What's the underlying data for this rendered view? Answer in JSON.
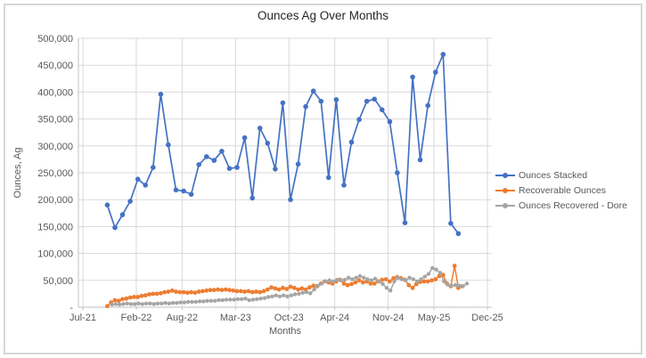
{
  "chart_data": {
    "type": "line",
    "title": "Ounces Ag Over Months",
    "xlabel": "Months",
    "ylabel": "Ounces, Ag",
    "ylim": [
      0,
      500000
    ],
    "ytick_step": 50000,
    "ytick_labels": [
      "-",
      "50,000",
      "100,000",
      "150,000",
      "200,000",
      "250,000",
      "300,000",
      "350,000",
      "400,000",
      "450,000",
      "500,000"
    ],
    "xtick_labels": [
      "Jul-21",
      "Feb-22",
      "Aug-22",
      "Mar-23",
      "Oct-23",
      "Apr-24",
      "Nov-24",
      "May-25",
      "Dec-25"
    ],
    "xtick_month_offsets": [
      0,
      7,
      13,
      20,
      27,
      33,
      40,
      46,
      53
    ],
    "axis_total_months": 53,
    "grid": true,
    "legend_position": "right",
    "colors": {
      "gridline": "#d9d9d9",
      "axis_line": "#bfbfbf",
      "axis_text": "#595959",
      "title_text": "#262626"
    },
    "series": [
      {
        "name": "Ounces Stacked",
        "color": "#4472C4",
        "start_month_offset": 3.2,
        "step_months": 1,
        "values": [
          190000,
          148000,
          172000,
          197000,
          238000,
          227000,
          260000,
          396000,
          302000,
          218000,
          216000,
          210000,
          265000,
          280000,
          273000,
          290000,
          258000,
          260000,
          315000,
          203000,
          333000,
          305000,
          257000,
          380000,
          200000,
          266000,
          373000,
          402000,
          383000,
          241000,
          386000,
          227000,
          307000,
          349000,
          383000,
          387000,
          367000,
          345000,
          250000,
          157000,
          428000,
          274000,
          375000,
          437000,
          470000,
          156000,
          137000
        ]
      },
      {
        "name": "Recoverable Ounces",
        "color": "#ED7D31",
        "start_month_offset": 3.2,
        "step_months": 0.5,
        "values": [
          2000,
          9000,
          13000,
          12000,
          15000,
          16000,
          18000,
          19000,
          19000,
          21000,
          22000,
          24000,
          25000,
          25000,
          26000,
          28000,
          29000,
          31000,
          29000,
          28000,
          28000,
          27000,
          28000,
          27000,
          29000,
          30000,
          31000,
          32000,
          32000,
          33000,
          32000,
          33000,
          32000,
          31000,
          30000,
          30000,
          29000,
          30000,
          28000,
          29000,
          28000,
          30000,
          33000,
          37000,
          35000,
          33000,
          36000,
          34000,
          38000,
          36000,
          33000,
          35000,
          33000,
          37000,
          40000,
          39000,
          44000,
          48000,
          46000,
          44000,
          48000,
          51000,
          44000,
          41000,
          43000,
          46000,
          50000,
          46000,
          48000,
          44000,
          44000,
          48000,
          51000,
          52000,
          48000,
          54000,
          56000,
          54000,
          51000,
          41000,
          36000,
          43000,
          47000,
          48000,
          48000,
          50000,
          52000,
          58000,
          60000,
          44000,
          39000,
          77000,
          36000,
          39000
        ]
      },
      {
        "name": "Ounces Recovered - Dore",
        "color": "#A5A5A5",
        "start_month_offset": 3.8,
        "step_months": 0.5,
        "values": [
          5000,
          6000,
          5000,
          6000,
          7000,
          6000,
          6000,
          7000,
          6000,
          7000,
          7000,
          6000,
          7000,
          7000,
          8000,
          7000,
          8000,
          8000,
          9000,
          9000,
          10000,
          10000,
          10000,
          11000,
          11000,
          12000,
          12000,
          12000,
          13000,
          13000,
          14000,
          14000,
          14000,
          15000,
          15000,
          16000,
          13000,
          14000,
          15000,
          16000,
          17000,
          19000,
          20000,
          22000,
          20000,
          22000,
          20000,
          22000,
          24000,
          25000,
          27000,
          28000,
          26000,
          33000,
          40000,
          44000,
          48000,
          50000,
          48000,
          51000,
          50000,
          51000,
          55000,
          52000,
          55000,
          58000,
          55000,
          52000,
          50000,
          53000,
          48000,
          43000,
          36000,
          31000,
          48000,
          55000,
          52000,
          50000,
          55000,
          52000,
          48000,
          52000,
          57000,
          62000,
          73000,
          70000,
          64000,
          48000,
          42000,
          40000,
          41000,
          40000,
          39000,
          44000
        ]
      }
    ]
  }
}
